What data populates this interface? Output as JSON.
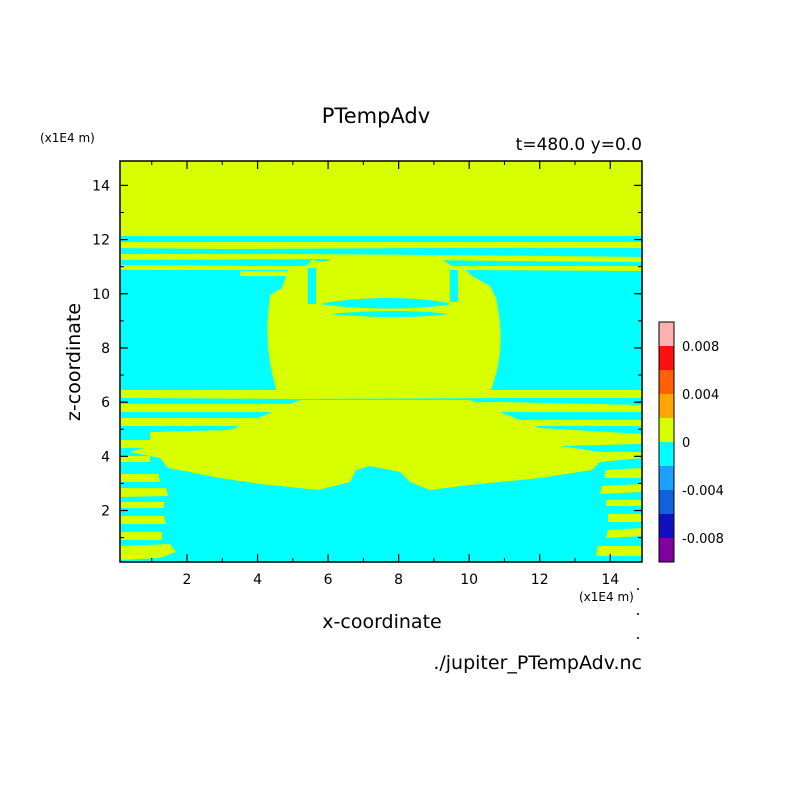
{
  "chart_data": {
    "type": "heatmap",
    "title": "PTempAdv",
    "subtitle": "t=480.0 y=0.0",
    "xlabel": "x-coordinate",
    "ylabel": "z-coordinate",
    "x_unit": "(x1E4 m)",
    "z_unit": "(x1E4 m)",
    "source_file": "./jupiter_PTempAdv.nc",
    "xlim": [
      0.1,
      14.9
    ],
    "ylim": [
      0.1,
      14.9
    ],
    "x_ticks": [
      2,
      4,
      6,
      8,
      10,
      12,
      14
    ],
    "y_ticks": [
      2,
      4,
      6,
      8,
      10,
      12,
      14
    ],
    "x_tick_labels": [
      "2",
      "4",
      "6",
      "8",
      "10",
      "12",
      "14"
    ],
    "y_tick_labels": [
      "2",
      "4",
      "6",
      "8",
      "10",
      "12",
      "14"
    ],
    "colorbar": {
      "levels": [
        -0.01,
        -0.008,
        -0.006,
        -0.004,
        -0.002,
        0,
        0.002,
        0.004,
        0.006,
        0.008,
        0.01
      ],
      "colors": [
        "#8000a0",
        "#1010c0",
        "#1060e0",
        "#1aa0ff",
        "#00ffff",
        "#d7ff00",
        "#ffa500",
        "#ff6000",
        "#ff1010",
        "#ffb0b0"
      ],
      "tick_values": [
        -0.008,
        -0.004,
        0,
        0.004,
        0.008
      ],
      "tick_labels": [
        "-0.008",
        "-0.004",
        "0",
        "0.004",
        "0.008"
      ]
    },
    "field_colors": {
      "zero_band": "#d7ff00",
      "negative_band": "#00ffff"
    },
    "regions": {
      "top_layer": {
        "value_band": "0",
        "z": [
          12.1,
          14.9
        ]
      },
      "upper_stripes": {
        "value_band": "0",
        "z": [
          11.1,
          11.9
        ]
      },
      "central_blob": {
        "value_band": "0",
        "x": [
          4.2,
          10.8
        ],
        "z": [
          6.3,
          11.4
        ]
      },
      "middle_band": {
        "value_band": "0",
        "x": [
          1.5,
          13.8
        ],
        "z": [
          2.8,
          6.3
        ]
      },
      "lower_left_stripes": {
        "value_band": "0",
        "x": [
          0.1,
          1.5
        ],
        "z": [
          0.1,
          4.5
        ]
      },
      "background": {
        "value_band": "-0.002 to 0"
      }
    }
  }
}
